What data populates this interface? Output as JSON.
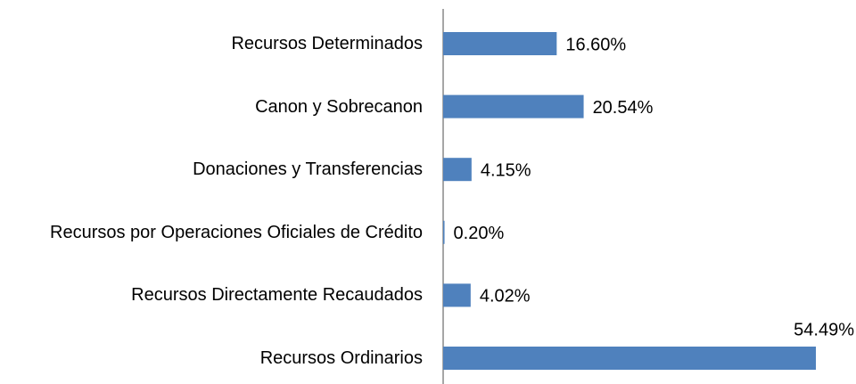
{
  "chart_data": {
    "type": "barh",
    "categories": [
      "Recursos Determinados",
      "Canon y Sobrecanon",
      "Donaciones y Transferencias",
      "Recursos por Operaciones Oficiales de Crédito",
      "Recursos Directamente Recaudados",
      "Recursos Ordinarios"
    ],
    "values": [
      16.6,
      20.54,
      4.15,
      0.2,
      4.02,
      54.49
    ],
    "value_labels": [
      "16.60%",
      "20.54%",
      "4.15%",
      "0.20%",
      "4.02%",
      "54.49%"
    ],
    "color": "#4f81bd"
  }
}
